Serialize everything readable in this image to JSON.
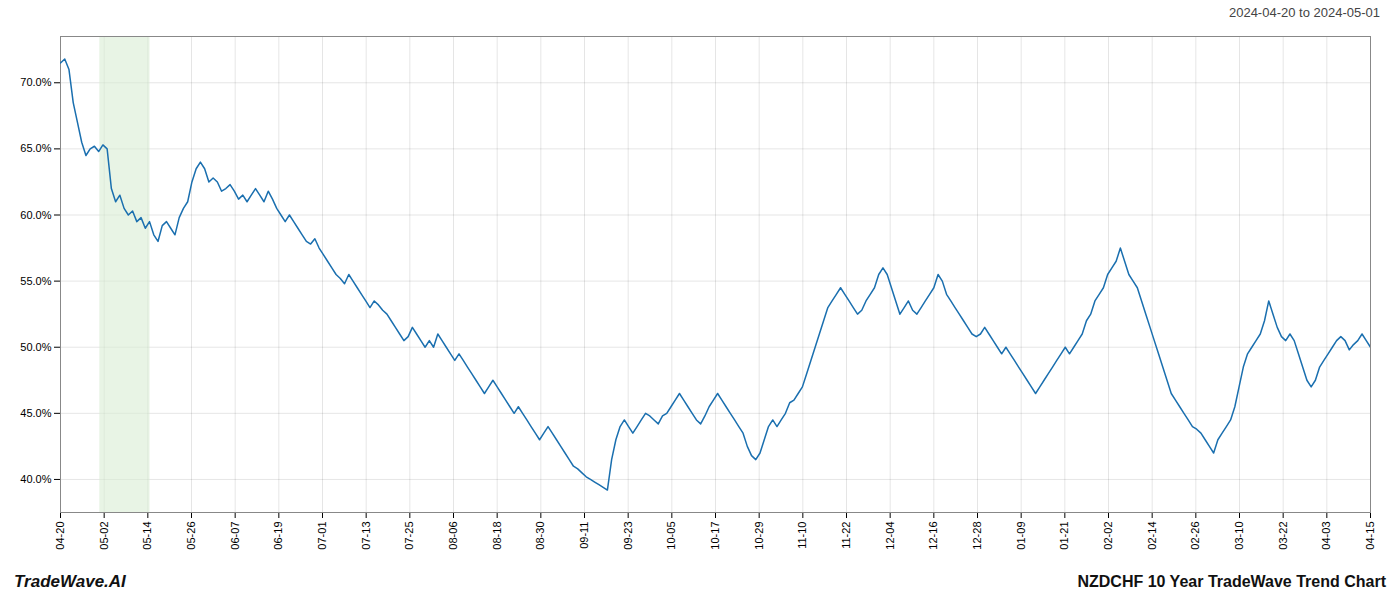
{
  "chart_data": {
    "type": "line",
    "title": "NZDCHF 10 Year TradeWave Trend Chart",
    "subtitle": "2024-04-20 to 2024-05-01",
    "annotations": [
      "TradeWave.AI"
    ],
    "color": "#1a6faf",
    "grid": true,
    "xlim": [
      0,
      30
    ],
    "xticks": [
      {
        "value": 0,
        "label": "04-20"
      },
      {
        "value": 1,
        "label": "05-02"
      },
      {
        "value": 2,
        "label": "05-14"
      },
      {
        "value": 3,
        "label": "05-26"
      },
      {
        "value": 4,
        "label": "06-07"
      },
      {
        "value": 5,
        "label": "06-19"
      },
      {
        "value": 6,
        "label": "07-01"
      },
      {
        "value": 7,
        "label": "07-13"
      },
      {
        "value": 8,
        "label": "07-25"
      },
      {
        "value": 9,
        "label": "08-06"
      },
      {
        "value": 10,
        "label": "08-18"
      },
      {
        "value": 11,
        "label": "08-30"
      },
      {
        "value": 12,
        "label": "09-11"
      },
      {
        "value": 13,
        "label": "09-23"
      },
      {
        "value": 14,
        "label": "10-05"
      },
      {
        "value": 15,
        "label": "10-17"
      },
      {
        "value": 16,
        "label": "10-29"
      },
      {
        "value": 17,
        "label": "11-10"
      },
      {
        "value": 18,
        "label": "11-22"
      },
      {
        "value": 19,
        "label": "12-04"
      },
      {
        "value": 20,
        "label": "12-16"
      },
      {
        "value": 21,
        "label": "12-28"
      },
      {
        "value": 22,
        "label": "01-09"
      },
      {
        "value": 23,
        "label": "01-21"
      },
      {
        "value": 24,
        "label": "02-02"
      },
      {
        "value": 25,
        "label": "02-14"
      },
      {
        "value": 26,
        "label": "02-26"
      },
      {
        "value": 27,
        "label": "03-10"
      },
      {
        "value": 28,
        "label": "03-22"
      },
      {
        "value": 29,
        "label": "04-03"
      },
      {
        "value": 30,
        "label": "04-15"
      }
    ],
    "ylim": [
      37.5,
      73.5
    ],
    "yticks": [
      {
        "value": 40.0,
        "label": "40.0%"
      },
      {
        "value": 45.0,
        "label": "45.0%"
      },
      {
        "value": 50.0,
        "label": "50.0%"
      },
      {
        "value": 55.0,
        "label": "55.0%"
      },
      {
        "value": 60.0,
        "label": "60.0%"
      },
      {
        "value": 65.0,
        "label": "65.0%"
      },
      {
        "value": 70.0,
        "label": "70.0%"
      }
    ],
    "highlight": {
      "x": [
        0.9,
        2.05
      ],
      "color": "#d8edd3"
    },
    "values": [
      71.5,
      71.8,
      71.0,
      68.5,
      67.0,
      65.5,
      64.5,
      65.0,
      65.2,
      64.8,
      65.3,
      65.0,
      62.0,
      61.0,
      61.5,
      60.5,
      60.0,
      60.3,
      59.5,
      59.8,
      59.0,
      59.5,
      58.5,
      58.0,
      59.2,
      59.5,
      59.0,
      58.5,
      59.8,
      60.5,
      61.0,
      62.5,
      63.5,
      64.0,
      63.5,
      62.5,
      62.8,
      62.5,
      61.8,
      62.0,
      62.3,
      61.8,
      61.2,
      61.5,
      61.0,
      61.5,
      62.0,
      61.5,
      61.0,
      61.8,
      61.2,
      60.5,
      60.0,
      59.5,
      60.0,
      59.5,
      59.0,
      58.5,
      58.0,
      57.8,
      58.2,
      57.5,
      57.0,
      56.5,
      56.0,
      55.5,
      55.2,
      54.8,
      55.5,
      55.0,
      54.5,
      54.0,
      53.5,
      53.0,
      53.5,
      53.2,
      52.8,
      52.5,
      52.0,
      51.5,
      51.0,
      50.5,
      50.8,
      51.5,
      51.0,
      50.5,
      50.0,
      50.5,
      50.0,
      51.0,
      50.5,
      50.0,
      49.5,
      49.0,
      49.5,
      49.0,
      48.5,
      48.0,
      47.5,
      47.0,
      46.5,
      47.0,
      47.5,
      47.0,
      46.5,
      46.0,
      45.5,
      45.0,
      45.5,
      45.0,
      44.5,
      44.0,
      43.5,
      43.0,
      43.5,
      44.0,
      43.5,
      43.0,
      42.5,
      42.0,
      41.5,
      41.0,
      40.8,
      40.5,
      40.2,
      40.0,
      39.8,
      39.6,
      39.4,
      39.2,
      41.5,
      43.0,
      44.0,
      44.5,
      44.0,
      43.5,
      44.0,
      44.5,
      45.0,
      44.8,
      44.5,
      44.2,
      44.8,
      45.0,
      45.5,
      46.0,
      46.5,
      46.0,
      45.5,
      45.0,
      44.5,
      44.2,
      44.8,
      45.5,
      46.0,
      46.5,
      46.0,
      45.5,
      45.0,
      44.5,
      44.0,
      43.5,
      42.5,
      41.8,
      41.5,
      42.0,
      43.0,
      44.0,
      44.5,
      44.0,
      44.5,
      45.0,
      45.8,
      46.0,
      46.5,
      47.0,
      48.0,
      49.0,
      50.0,
      51.0,
      52.0,
      53.0,
      53.5,
      54.0,
      54.5,
      54.0,
      53.5,
      53.0,
      52.5,
      52.8,
      53.5,
      54.0,
      54.5,
      55.5,
      56.0,
      55.5,
      54.5,
      53.5,
      52.5,
      53.0,
      53.5,
      52.8,
      52.5,
      53.0,
      53.5,
      54.0,
      54.5,
      55.5,
      55.0,
      54.0,
      53.5,
      53.0,
      52.5,
      52.0,
      51.5,
      51.0,
      50.8,
      51.0,
      51.5,
      51.0,
      50.5,
      50.0,
      49.5,
      50.0,
      49.5,
      49.0,
      48.5,
      48.0,
      47.5,
      47.0,
      46.5,
      47.0,
      47.5,
      48.0,
      48.5,
      49.0,
      49.5,
      50.0,
      49.5,
      50.0,
      50.5,
      51.0,
      52.0,
      52.5,
      53.5,
      54.0,
      54.5,
      55.5,
      56.0,
      56.5,
      57.5,
      56.5,
      55.5,
      55.0,
      54.5,
      53.5,
      52.5,
      51.5,
      50.5,
      49.5,
      48.5,
      47.5,
      46.5,
      46.0,
      45.5,
      45.0,
      44.5,
      44.0,
      43.8,
      43.5,
      43.0,
      42.5,
      42.0,
      43.0,
      43.5,
      44.0,
      44.5,
      45.5,
      47.0,
      48.5,
      49.5,
      50.0,
      50.5,
      51.0,
      52.0,
      53.5,
      52.5,
      51.5,
      50.8,
      50.5,
      51.0,
      50.5,
      49.5,
      48.5,
      47.5,
      47.0,
      47.5,
      48.5,
      49.0,
      49.5,
      50.0,
      50.5,
      50.8,
      50.5,
      49.8,
      50.2,
      50.5,
      51.0,
      50.5,
      50.0
    ]
  }
}
